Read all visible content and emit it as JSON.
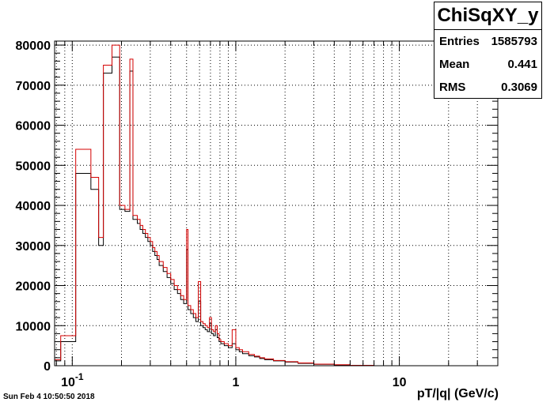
{
  "chart_data": {
    "type": "histogram",
    "title": "ChiSqXY_y",
    "xlabel": "pT/|q| (GeV/c)",
    "ylabel": "",
    "x_scale": "log",
    "xlim": [
      0.078,
      40
    ],
    "ylim": [
      0,
      81000
    ],
    "grid": true,
    "yticks": [
      0,
      10000,
      20000,
      30000,
      40000,
      50000,
      60000,
      70000,
      80000
    ],
    "ytick_labels": [
      "0",
      "10000",
      "20000",
      "30000",
      "40000",
      "50000",
      "60000",
      "70000",
      "80000"
    ],
    "xtick_labels": [
      "10^{-1}",
      "1",
      "10"
    ],
    "series": [
      {
        "color": "#000000",
        "bins": [
          [
            0.078,
            0.085,
            1200
          ],
          [
            0.085,
            0.105,
            6000
          ],
          [
            0.105,
            0.13,
            48000
          ],
          [
            0.13,
            0.145,
            44000
          ],
          [
            0.145,
            0.155,
            30000
          ],
          [
            0.155,
            0.175,
            73000
          ],
          [
            0.175,
            0.195,
            77000
          ],
          [
            0.195,
            0.21,
            39000
          ],
          [
            0.21,
            0.225,
            38500
          ],
          [
            0.225,
            0.235,
            73500
          ],
          [
            0.235,
            0.25,
            36500
          ],
          [
            0.25,
            0.26,
            35500
          ],
          [
            0.26,
            0.27,
            34000
          ],
          [
            0.27,
            0.28,
            33000
          ],
          [
            0.28,
            0.29,
            32000
          ],
          [
            0.29,
            0.3,
            31000
          ],
          [
            0.3,
            0.31,
            30000
          ],
          [
            0.31,
            0.32,
            28500
          ],
          [
            0.32,
            0.33,
            27500
          ],
          [
            0.33,
            0.34,
            26500
          ],
          [
            0.34,
            0.36,
            25000
          ],
          [
            0.36,
            0.38,
            23500
          ],
          [
            0.38,
            0.4,
            22000
          ],
          [
            0.4,
            0.42,
            20500
          ],
          [
            0.42,
            0.44,
            19000
          ],
          [
            0.44,
            0.46,
            18000
          ],
          [
            0.46,
            0.48,
            16500
          ],
          [
            0.48,
            0.5,
            15500
          ],
          [
            0.5,
            0.51,
            29000
          ],
          [
            0.51,
            0.53,
            14000
          ],
          [
            0.53,
            0.55,
            13000
          ],
          [
            0.55,
            0.57,
            12000
          ],
          [
            0.57,
            0.59,
            11000
          ],
          [
            0.59,
            0.61,
            16000
          ],
          [
            0.61,
            0.63,
            10000
          ],
          [
            0.63,
            0.65,
            9500
          ],
          [
            0.65,
            0.67,
            9000
          ],
          [
            0.67,
            0.69,
            8500
          ],
          [
            0.69,
            0.71,
            10500
          ],
          [
            0.71,
            0.73,
            8000
          ],
          [
            0.73,
            0.75,
            7500
          ],
          [
            0.75,
            0.77,
            9000
          ],
          [
            0.77,
            0.79,
            7000
          ],
          [
            0.79,
            0.81,
            6000
          ],
          [
            0.81,
            0.85,
            5500
          ],
          [
            0.85,
            0.9,
            5000
          ],
          [
            0.9,
            0.95,
            4500
          ],
          [
            0.95,
            1.0,
            5500
          ],
          [
            1.0,
            1.05,
            4000
          ],
          [
            1.05,
            1.1,
            3500
          ],
          [
            1.1,
            1.2,
            3000
          ],
          [
            1.2,
            1.3,
            2500
          ],
          [
            1.3,
            1.4,
            2200
          ],
          [
            1.4,
            1.5,
            1800
          ],
          [
            1.5,
            1.7,
            1500
          ],
          [
            1.7,
            2.0,
            1200
          ],
          [
            2.0,
            2.4,
            900
          ],
          [
            2.4,
            3.0,
            600
          ],
          [
            3.0,
            4.0,
            350
          ],
          [
            4.0,
            5.0,
            200
          ],
          [
            5.0,
            7.0,
            100
          ],
          [
            7.0,
            40,
            0
          ]
        ]
      },
      {
        "color": "#d40000",
        "bins": [
          [
            0.078,
            0.085,
            1500
          ],
          [
            0.085,
            0.105,
            7500
          ],
          [
            0.105,
            0.13,
            54000
          ],
          [
            0.13,
            0.145,
            47000
          ],
          [
            0.145,
            0.155,
            32000
          ],
          [
            0.155,
            0.175,
            75000
          ],
          [
            0.175,
            0.195,
            80000
          ],
          [
            0.195,
            0.21,
            40000
          ],
          [
            0.21,
            0.225,
            39000
          ],
          [
            0.225,
            0.235,
            76500
          ],
          [
            0.235,
            0.25,
            37500
          ],
          [
            0.25,
            0.26,
            36500
          ],
          [
            0.26,
            0.27,
            35000
          ],
          [
            0.27,
            0.28,
            34000
          ],
          [
            0.28,
            0.29,
            33000
          ],
          [
            0.29,
            0.3,
            32000
          ],
          [
            0.3,
            0.31,
            31000
          ],
          [
            0.31,
            0.32,
            29500
          ],
          [
            0.32,
            0.33,
            28500
          ],
          [
            0.33,
            0.34,
            27500
          ],
          [
            0.34,
            0.36,
            26000
          ],
          [
            0.36,
            0.38,
            24500
          ],
          [
            0.38,
            0.4,
            23000
          ],
          [
            0.4,
            0.42,
            21500
          ],
          [
            0.42,
            0.44,
            20000
          ],
          [
            0.44,
            0.46,
            19000
          ],
          [
            0.46,
            0.48,
            17500
          ],
          [
            0.48,
            0.5,
            16500
          ],
          [
            0.5,
            0.51,
            34000
          ],
          [
            0.51,
            0.53,
            15000
          ],
          [
            0.53,
            0.55,
            14000
          ],
          [
            0.55,
            0.57,
            13000
          ],
          [
            0.57,
            0.59,
            12000
          ],
          [
            0.59,
            0.61,
            21000
          ],
          [
            0.61,
            0.63,
            11000
          ],
          [
            0.63,
            0.65,
            10500
          ],
          [
            0.65,
            0.67,
            10000
          ],
          [
            0.67,
            0.69,
            9500
          ],
          [
            0.69,
            0.71,
            12000
          ],
          [
            0.71,
            0.73,
            9000
          ],
          [
            0.73,
            0.75,
            8500
          ],
          [
            0.75,
            0.77,
            10000
          ],
          [
            0.77,
            0.79,
            8000
          ],
          [
            0.79,
            0.81,
            6500
          ],
          [
            0.81,
            0.85,
            6000
          ],
          [
            0.85,
            0.9,
            5500
          ],
          [
            0.9,
            0.95,
            5000
          ],
          [
            0.95,
            1.0,
            9000
          ],
          [
            1.0,
            1.05,
            4500
          ],
          [
            1.05,
            1.1,
            4000
          ],
          [
            1.1,
            1.2,
            3500
          ],
          [
            1.2,
            1.3,
            2800
          ],
          [
            1.3,
            1.4,
            2400
          ],
          [
            1.4,
            1.5,
            2000
          ],
          [
            1.5,
            1.7,
            1700
          ],
          [
            1.7,
            2.0,
            1300
          ],
          [
            2.0,
            2.4,
            1000
          ],
          [
            2.4,
            3.0,
            700
          ],
          [
            3.0,
            4.0,
            400
          ],
          [
            4.0,
            5.0,
            250
          ],
          [
            5.0,
            7.0,
            100
          ],
          [
            7.0,
            40,
            0
          ]
        ]
      }
    ]
  },
  "stats": {
    "title": "ChiSqXY_y",
    "rows": [
      {
        "label": "Entries",
        "value": "1585793"
      },
      {
        "label": "Mean",
        "value": "0.441"
      },
      {
        "label": "RMS",
        "value": "0.3069"
      }
    ]
  },
  "footer": {
    "timestamp": "Sun Feb  4 10:50:50 2018"
  }
}
